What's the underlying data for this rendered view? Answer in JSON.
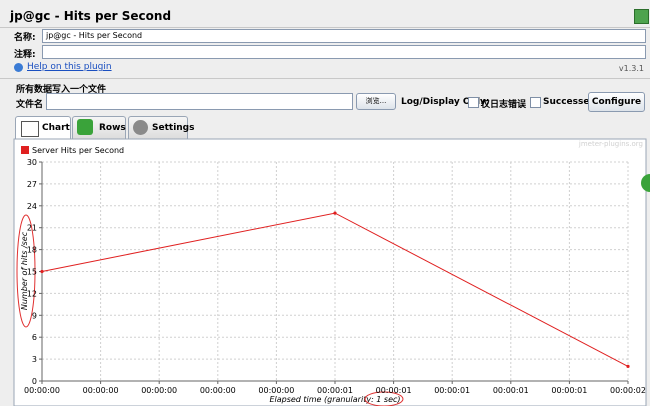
{
  "window": {
    "title": "jp@gc - Hits per Second"
  },
  "form": {
    "name_label": "名称:",
    "name_value": "jp@gc - Hits per Second",
    "comment_label": "注释:",
    "help_link": "Help on this plugin",
    "version": "v1.3.1"
  },
  "file": {
    "group_title": "所有数据写入一个文件",
    "file_label": "文件名",
    "browse_button": "浏览...",
    "log_label": "Log/Display Only:",
    "errors_checkbox": "仅日志错误",
    "successes_checkbox": "Successes",
    "configure_button": "Configure"
  },
  "tabs": [
    "Chart",
    "Rows",
    "Settings"
  ],
  "chart_data": {
    "type": "line",
    "watermark": "jmeter-plugins.org",
    "ylabel": "Number of hits /sec",
    "xlabel": "Elapsed time (granularity: 1 sec)",
    "x": [
      0,
      1000,
      2000
    ],
    "series": [
      {
        "name": "Server Hits per Second",
        "color": "#e02020",
        "values": [
          15,
          23,
          2
        ]
      }
    ],
    "xlim": [
      0,
      2000
    ],
    "xticks": [
      {
        "value": 0,
        "label": "00:00:00"
      },
      {
        "value": 200,
        "label": "00:00:00"
      },
      {
        "value": 400,
        "label": "00:00:00"
      },
      {
        "value": 600,
        "label": "00:00:00"
      },
      {
        "value": 800,
        "label": "00:00:00"
      },
      {
        "value": 1000,
        "label": "00:00:01"
      },
      {
        "value": 1200,
        "label": "00:00:01"
      },
      {
        "value": 1400,
        "label": "00:00:01"
      },
      {
        "value": 1600,
        "label": "00:00:01"
      },
      {
        "value": 1800,
        "label": "00:00:01"
      },
      {
        "value": 2000,
        "label": "00:00:02"
      }
    ],
    "ylim": [
      0,
      30
    ],
    "yticks": [
      0,
      3,
      6,
      9,
      12,
      15,
      18,
      21,
      24,
      27,
      30
    ],
    "grid": true
  }
}
